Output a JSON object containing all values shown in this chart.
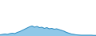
{
  "y": [
    1.5,
    2.0,
    2.5,
    2.0,
    3.0,
    3.5,
    3.0,
    4.5,
    5.5,
    7.0,
    8.5,
    10.0,
    11.5,
    12.5,
    11.0,
    12.0,
    10.5,
    11.0,
    9.5,
    10.5,
    9.0,
    9.5,
    8.5,
    9.0,
    8.0,
    7.0,
    6.0,
    4.5,
    3.5,
    2.5,
    2.0,
    1.5,
    1.2,
    1.0,
    1.0,
    1.0,
    1.0,
    1.0,
    0.8,
    0.8
  ],
  "line_color": "#2b8abf",
  "fill_color": "#90c8e8",
  "background_color": "#ffffff",
  "ylim_min": 0,
  "ylim_max": 45
}
